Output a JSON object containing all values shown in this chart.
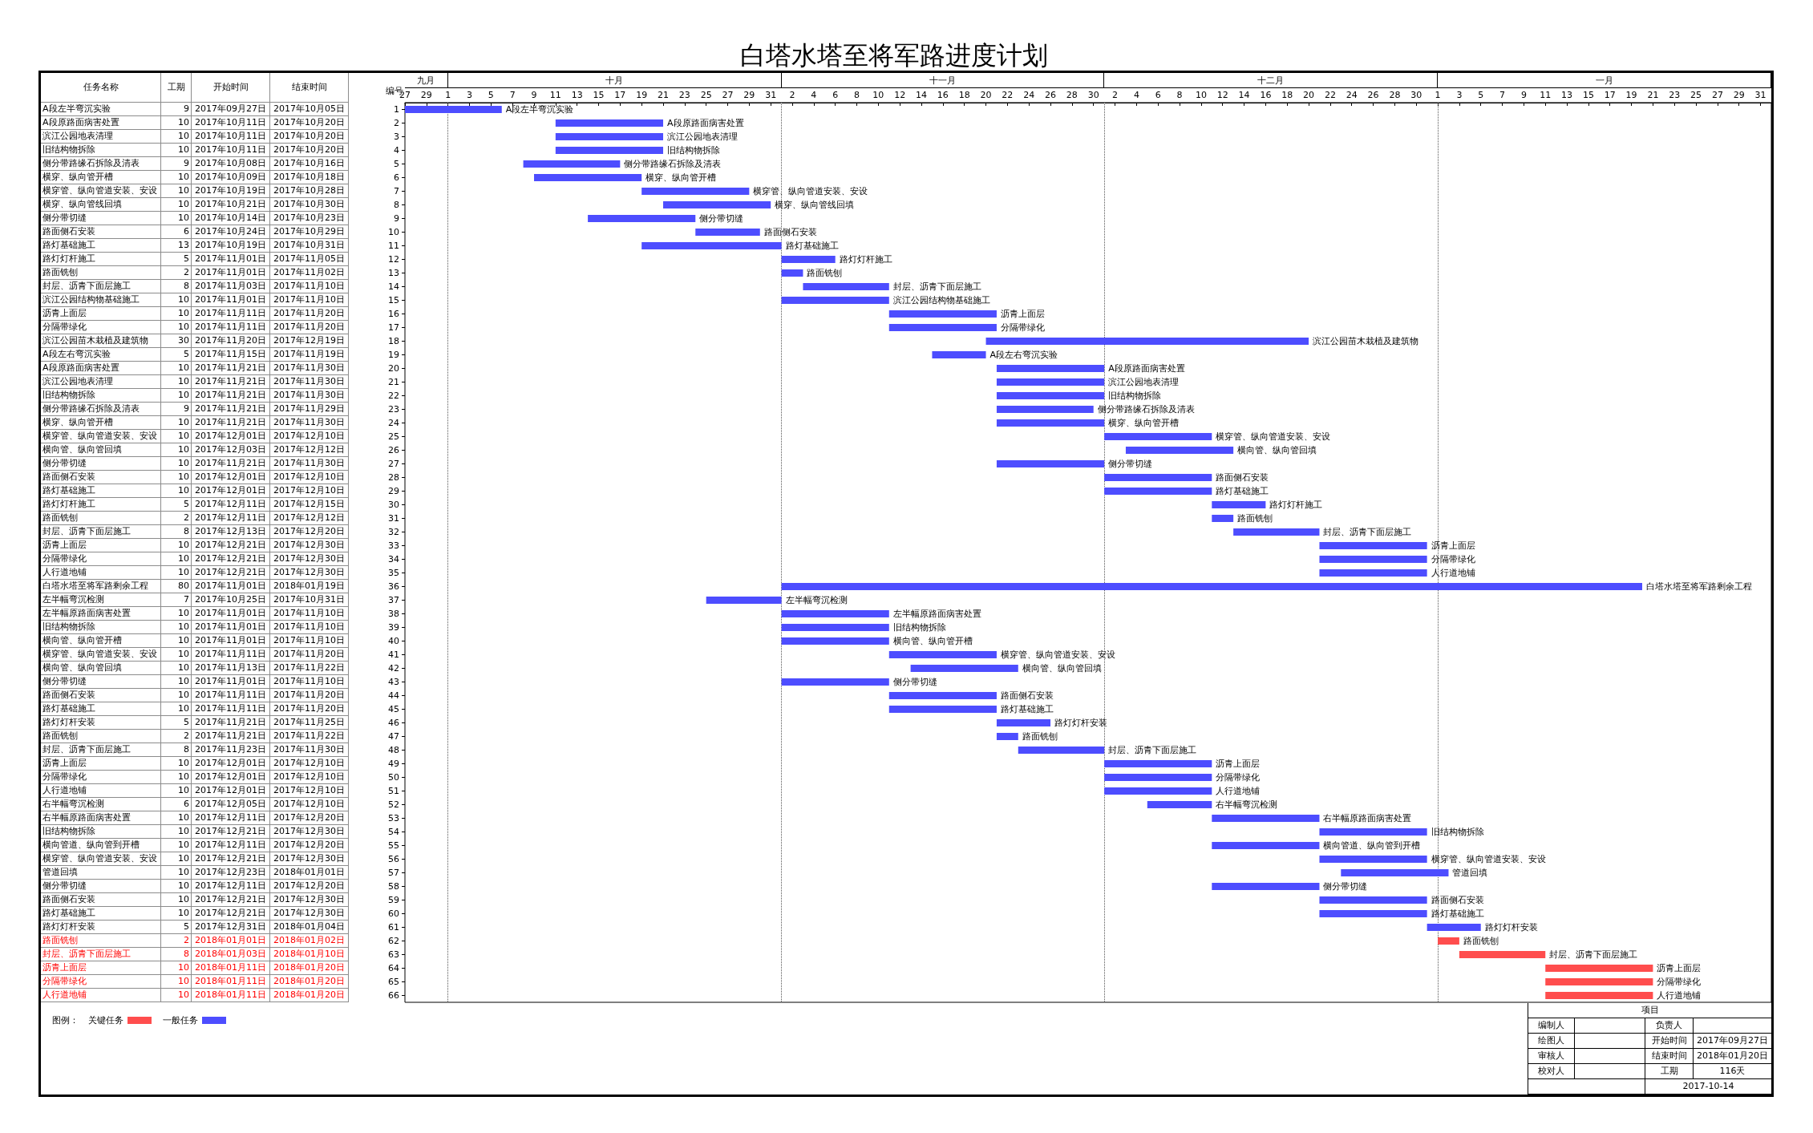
{
  "chart_data": [
    {
      "type": "other",
      "categories": [
        "任务名称",
        "工期",
        "开始时间",
        "结束时间"
      ],
      "annotations": [
        "A段左半弯沉实验",
        "9",
        "2017年09月27日",
        "2017年10月05日",
        "A段原路面病害处置",
        "10",
        "2017年10月11日",
        "2017年10月20日",
        "滨江公园地表清理",
        "10",
        "2017年10月11日",
        "2017年10月20日",
        "旧结构物拆除",
        "10",
        "2017年10月11日",
        "2017年10月20日",
        "侧分带路缘石拆除及清表",
        "9",
        "2017年10月08日",
        "2017年10月16日",
        "横穿、纵向管开槽",
        "10",
        "2017年10月09日",
        "2017年10月18日",
        "横穿管、纵向管道安装、安设",
        "10",
        "2017年10月19日",
        "2017年10月28日",
        "横穿、纵向管线回填",
        "10",
        "2017年10月21日",
        "2017年10月30日",
        "侧分带切缝",
        "10",
        "2017年10月14日",
        "2017年10月23日",
        "路面侧石安装",
        "6",
        "2017年10月24日",
        "2017年10月29日",
        "路灯基础施工",
        "13",
        "2017年10月19日",
        "2017年10月31日",
        "路灯灯杆施工",
        "5",
        "2017年11月01日",
        "2017年11月05日",
        "路面铣刨",
        "2",
        "2017年11月01日",
        "2017年11月02日",
        "封层、沥青下面层施工",
        "8",
        "2017年11月03日",
        "2017年11月10日",
        "滨江公园结构物基础施工",
        "10",
        "2017年11月01日",
        "2017年11月10日",
        "沥青上面层",
        "10",
        "2017年11月11日",
        "2017年11月20日",
        "分隔带绿化",
        "10",
        "2017年11月11日",
        "2017年11月20日",
        "滨江公园苗木栽植及建筑物",
        "30",
        "2017年11月20日",
        "2017年12月19日",
        "A段左右弯沉实验",
        "5",
        "2017年11月15日",
        "2017年11月19日",
        "A段原路面病害处置",
        "10",
        "2017年11月21日",
        "2017年11月30日",
        "滨江公园地表清理",
        "10",
        "2017年11月21日",
        "2017年11月30日",
        "旧结构物拆除",
        "10",
        "2017年11月21日",
        "2017年11月30日",
        "侧分带路缘石拆除及清表",
        "9",
        "2017年11月21日",
        "2017年11月29日",
        "横穿、纵向管开槽",
        "10",
        "2017年11月21日",
        "2017年11月30日",
        "横穿管、纵向管道安装、安设",
        "10",
        "2017年12月01日",
        "2017年12月10日",
        "横向管、纵向管回填",
        "10",
        "2017年12月03日",
        "2017年12月12日",
        "侧分带切缝",
        "10",
        "2017年11月21日",
        "2017年11月30日",
        "路面侧石安装",
        "10",
        "2017年12月01日",
        "2017年12月10日",
        "路灯基础施工",
        "10",
        "2017年12月01日",
        "2017年12月10日",
        "路灯灯杆施工",
        "5",
        "2017年12月11日",
        "2017年12月15日",
        "路面铣刨",
        "2",
        "2017年12月11日",
        "2017年12月12日",
        "封层、沥青下面层施工",
        "8",
        "2017年12月13日",
        "2017年12月20日",
        "沥青上面层",
        "10",
        "2017年12月21日",
        "2017年12月30日",
        "分隔带绿化",
        "10",
        "2017年12月21日",
        "2017年12月30日",
        "人行道地铺",
        "10",
        "2017年12月21日",
        "2017年12月30日",
        "白塔水塔至将军路剩余工程",
        "80",
        "2017年11月01日",
        "2018年01月19日",
        "左半幅弯沉检测",
        "7",
        "2017年10月25日",
        "2017年10月31日",
        "左半幅原路面病害处置",
        "10",
        "2017年11月01日",
        "2017年11月10日",
        "旧结构物拆除",
        "10",
        "2017年11月01日",
        "2017年11月10日",
        "横向管、纵向管开槽",
        "10",
        "2017年11月01日",
        "2017年11月10日",
        "横穿管、纵向管道安装、安设",
        "10",
        "2017年11月11日",
        "2017年11月20日",
        "横向管、纵向管回填",
        "10",
        "2017年11月13日",
        "2017年11月22日",
        "侧分带切缝",
        "10",
        "2017年11月01日",
        "2017年11月10日",
        "路面侧石安装",
        "10",
        "2017年11月11日",
        "2017年11月20日",
        "路灯基础施工",
        "10",
        "2017年11月11日",
        "2017年11月20日",
        "路灯灯杆安装",
        "5",
        "2017年11月21日",
        "2017年11月25日",
        "路面铣刨",
        "2",
        "2017年11月21日",
        "2017年11月22日",
        "封层、沥青下面层施工",
        "8",
        "2017年11月23日",
        "2017年11月30日",
        "沥青上面层",
        "10",
        "2017年12月01日",
        "2017年12月10日",
        "分隔带绿化",
        "10",
        "2017年12月01日",
        "2017年12月10日",
        "人行道地铺",
        "10",
        "2017年12月01日",
        "2017年12月10日",
        "右半幅弯沉检测",
        "6",
        "2017年12月05日",
        "2017年12月10日",
        "右半幅原路面病害处置",
        "10",
        "2017年12月11日",
        "2017年12月20日",
        "旧结构物拆除",
        "10",
        "2017年12月21日",
        "2017年12月30日",
        "横向管道、纵向管到开槽",
        "10",
        "2017年12月11日",
        "2017年12月20日",
        "横穿管、纵向管道安装、安设",
        "10",
        "2017年12月21日",
        "2017年12月30日",
        "管道回填",
        "10",
        "2017年12月23日",
        "2018年01月01日",
        "侧分带切缝",
        "10",
        "2017年12月11日",
        "2017年12月20日",
        "路面侧石安装",
        "10",
        "2017年12月21日",
        "2017年12月30日",
        "路灯基础施工",
        "10",
        "2017年12月21日",
        "2017年12月30日",
        "路灯灯杆安装",
        "5",
        "2017年12月31日",
        "2018年01月04日",
        "路面铣刨",
        "2",
        "2018年01月01日",
        "2018年01月02日",
        "封层、沥青下面层施工",
        "8",
        "2018年01月03日",
        "2018年01月10日",
        "沥青上面层",
        "10",
        "2018年01月11日",
        "2018年01月20日",
        "分隔带绿化",
        "10",
        "2018年01月11日",
        "2018年01月20日",
        "人行道地铺",
        "10",
        "2018年01月11日",
        "2018年01月20日"
      ],
      "colors": [
        "#000000",
        "#000000",
        "#000000",
        "#000000",
        "#000000",
        "#000000",
        "#000000",
        "#000000",
        "#000000",
        "#000000",
        "#000000",
        "#000000",
        "#000000",
        "#000000",
        "#000000",
        "#000000",
        "#000000",
        "#000000",
        "#000000",
        "#000000",
        "#000000",
        "#000000",
        "#000000",
        "#000000",
        "#000000",
        "#000000",
        "#000000",
        "#000000",
        "#000000",
        "#000000",
        "#000000",
        "#000000",
        "#000000",
        "#000000",
        "#000000",
        "#000000",
        "#000000",
        "#000000",
        "#000000",
        "#000000",
        "#000000",
        "#000000",
        "#000000",
        "#000000",
        "#000000",
        "#000000",
        "#000000",
        "#000000",
        "#000000",
        "#000000",
        "#000000",
        "#000000",
        "#000000",
        "#000000",
        "#000000",
        "#000000",
        "#000000",
        "#000000",
        "#000000",
        "#000000",
        "#000000",
        "#ff0000",
        "#ff0000",
        "#ff0000",
        "#ff0000",
        "#ff0000"
      ]
    },
    {
      "type": "line",
      "title": "白塔水塔至将军路进度计划",
      "ylabel": "编号",
      "series": [
        {
          "name": "关键任务",
          "color": "#ff4d4d",
          "x": [
            "2018-01-01",
            "2018-01-03"
          ],
          "values": [
            62,
            62
          ]
        },
        {
          "color": "#ff4d4d",
          "x": [
            "2018-01-03",
            "2018-01-11"
          ],
          "values": [
            63,
            63
          ]
        },
        {
          "color": "#ff4d4d",
          "x": [
            "2018-01-11",
            "2018-01-21"
          ],
          "values": [
            64,
            64
          ]
        },
        {
          "color": "#ff4d4d",
          "x": [
            "2018-01-11",
            "2018-01-21"
          ],
          "values": [
            65,
            65
          ]
        },
        {
          "color": "#ff4d4d",
          "x": [
            "2018-01-11",
            "2018-01-21"
          ],
          "values": [
            66,
            66
          ]
        },
        {
          "name": "一般任务",
          "color": "#4d4dff",
          "x": [
            "2017-09-27",
            "2017-10-06"
          ],
          "values": [
            1,
            1
          ]
        },
        {
          "color": "#4d4dff",
          "x": [
            "2017-10-11",
            "2017-10-21"
          ],
          "values": [
            2,
            2
          ]
        },
        {
          "color": "#4d4dff",
          "x": [
            "2017-10-11",
            "2017-10-21"
          ],
          "values": [
            3,
            3
          ]
        },
        {
          "color": "#4d4dff",
          "x": [
            "2017-10-11",
            "2017-10-21"
          ],
          "values": [
            4,
            4
          ]
        },
        {
          "color": "#4d4dff",
          "x": [
            "2017-10-08",
            "2017-10-17"
          ],
          "values": [
            5,
            5
          ]
        },
        {
          "color": "#4d4dff",
          "x": [
            "2017-10-09",
            "2017-10-19"
          ],
          "values": [
            6,
            6
          ]
        },
        {
          "color": "#4d4dff",
          "x": [
            "2017-10-19",
            "2017-10-29"
          ],
          "values": [
            7,
            7
          ]
        },
        {
          "color": "#4d4dff",
          "x": [
            "2017-10-21",
            "2017-10-31"
          ],
          "values": [
            8,
            8
          ]
        },
        {
          "color": "#4d4dff",
          "x": [
            "2017-10-14",
            "2017-10-24"
          ],
          "values": [
            9,
            9
          ]
        },
        {
          "color": "#4d4dff",
          "x": [
            "2017-10-24",
            "2017-10-30"
          ],
          "values": [
            10,
            10
          ]
        },
        {
          "color": "#4d4dff",
          "x": [
            "2017-10-19",
            "2017-11-01"
          ],
          "values": [
            11,
            11
          ]
        },
        {
          "color": "#4d4dff",
          "x": [
            "2017-11-01",
            "2017-11-06"
          ],
          "values": [
            12,
            12
          ]
        },
        {
          "color": "#4d4dff",
          "x": [
            "2017-11-01",
            "2017-11-03"
          ],
          "values": [
            13,
            13
          ]
        },
        {
          "color": "#4d4dff",
          "x": [
            "2017-11-03",
            "2017-11-11"
          ],
          "values": [
            14,
            14
          ]
        },
        {
          "color": "#4d4dff",
          "x": [
            "2017-11-01",
            "2017-11-11"
          ],
          "values": [
            15,
            15
          ]
        },
        {
          "color": "#4d4dff",
          "x": [
            "2017-11-11",
            "2017-11-21"
          ],
          "values": [
            16,
            16
          ]
        },
        {
          "color": "#4d4dff",
          "x": [
            "2017-11-11",
            "2017-11-21"
          ],
          "values": [
            17,
            17
          ]
        },
        {
          "color": "#4d4dff",
          "x": [
            "2017-11-20",
            "2017-12-20"
          ],
          "values": [
            18,
            18
          ]
        },
        {
          "color": "#4d4dff",
          "x": [
            "2017-11-15",
            "2017-11-20"
          ],
          "values": [
            19,
            19
          ]
        },
        {
          "color": "#4d4dff",
          "x": [
            "2017-11-21",
            "2017-12-01"
          ],
          "values": [
            20,
            20
          ]
        },
        {
          "color": "#4d4dff",
          "x": [
            "2017-11-21",
            "2017-12-01"
          ],
          "values": [
            21,
            21
          ]
        },
        {
          "color": "#4d4dff",
          "x": [
            "2017-11-21",
            "2017-12-01"
          ],
          "values": [
            22,
            22
          ]
        },
        {
          "color": "#4d4dff",
          "x": [
            "2017-11-21",
            "2017-11-30"
          ],
          "values": [
            23,
            23
          ]
        },
        {
          "color": "#4d4dff",
          "x": [
            "2017-11-21",
            "2017-12-01"
          ],
          "values": [
            24,
            24
          ]
        },
        {
          "color": "#4d4dff",
          "x": [
            "2017-12-01",
            "2017-12-11"
          ],
          "values": [
            25,
            25
          ]
        },
        {
          "color": "#4d4dff",
          "x": [
            "2017-12-03",
            "2017-12-13"
          ],
          "values": [
            26,
            26
          ]
        },
        {
          "color": "#4d4dff",
          "x": [
            "2017-11-21",
            "2017-12-01"
          ],
          "values": [
            27,
            27
          ]
        },
        {
          "color": "#4d4dff",
          "x": [
            "2017-12-01",
            "2017-12-11"
          ],
          "values": [
            28,
            28
          ]
        },
        {
          "color": "#4d4dff",
          "x": [
            "2017-12-01",
            "2017-12-11"
          ],
          "values": [
            29,
            29
          ]
        },
        {
          "color": "#4d4dff",
          "x": [
            "2017-12-11",
            "2017-12-16"
          ],
          "values": [
            30,
            30
          ]
        },
        {
          "color": "#4d4dff",
          "x": [
            "2017-12-11",
            "2017-12-13"
          ],
          "values": [
            31,
            31
          ]
        },
        {
          "color": "#4d4dff",
          "x": [
            "2017-12-13",
            "2017-12-21"
          ],
          "values": [
            32,
            32
          ]
        },
        {
          "color": "#4d4dff",
          "x": [
            "2017-12-21",
            "2017-12-31"
          ],
          "values": [
            33,
            33
          ]
        },
        {
          "color": "#4d4dff",
          "x": [
            "2017-12-21",
            "2017-12-31"
          ],
          "values": [
            34,
            34
          ]
        },
        {
          "color": "#4d4dff",
          "x": [
            "2017-12-21",
            "2017-12-31"
          ],
          "values": [
            35,
            35
          ]
        },
        {
          "color": "#4d4dff",
          "x": [
            "2017-11-01",
            "2018-01-20"
          ],
          "values": [
            36,
            36
          ]
        },
        {
          "color": "#4d4dff",
          "x": [
            "2017-10-25",
            "2017-11-01"
          ],
          "values": [
            37,
            37
          ]
        },
        {
          "color": "#4d4dff",
          "x": [
            "2017-11-01",
            "2017-11-11"
          ],
          "values": [
            38,
            38
          ]
        },
        {
          "color": "#4d4dff",
          "x": [
            "2017-11-01",
            "2017-11-11"
          ],
          "values": [
            39,
            39
          ]
        },
        {
          "color": "#4d4dff",
          "x": [
            "2017-11-01",
            "2017-11-11"
          ],
          "values": [
            40,
            40
          ]
        },
        {
          "color": "#4d4dff",
          "x": [
            "2017-11-11",
            "2017-11-21"
          ],
          "values": [
            41,
            41
          ]
        },
        {
          "color": "#4d4dff",
          "x": [
            "2017-11-13",
            "2017-11-23"
          ],
          "values": [
            42,
            42
          ]
        },
        {
          "color": "#4d4dff",
          "x": [
            "2017-11-01",
            "2017-11-11"
          ],
          "values": [
            43,
            43
          ]
        },
        {
          "color": "#4d4dff",
          "x": [
            "2017-11-11",
            "2017-11-21"
          ],
          "values": [
            44,
            44
          ]
        },
        {
          "color": "#4d4dff",
          "x": [
            "2017-11-11",
            "2017-11-21"
          ],
          "values": [
            45,
            45
          ]
        },
        {
          "color": "#4d4dff",
          "x": [
            "2017-11-21",
            "2017-11-26"
          ],
          "values": [
            46,
            46
          ]
        },
        {
          "color": "#4d4dff",
          "x": [
            "2017-11-21",
            "2017-11-23"
          ],
          "values": [
            47,
            47
          ]
        },
        {
          "color": "#4d4dff",
          "x": [
            "2017-11-23",
            "2017-12-01"
          ],
          "values": [
            48,
            48
          ]
        },
        {
          "color": "#4d4dff",
          "x": [
            "2017-12-01",
            "2017-12-11"
          ],
          "values": [
            49,
            49
          ]
        },
        {
          "color": "#4d4dff",
          "x": [
            "2017-12-01",
            "2017-12-11"
          ],
          "values": [
            50,
            50
          ]
        },
        {
          "color": "#4d4dff",
          "x": [
            "2017-12-01",
            "2017-12-11"
          ],
          "values": [
            51,
            51
          ]
        },
        {
          "color": "#4d4dff",
          "x": [
            "2017-12-05",
            "2017-12-11"
          ],
          "values": [
            52,
            52
          ]
        },
        {
          "color": "#4d4dff",
          "x": [
            "2017-12-11",
            "2017-12-21"
          ],
          "values": [
            53,
            53
          ]
        },
        {
          "color": "#4d4dff",
          "x": [
            "2017-12-21",
            "2017-12-31"
          ],
          "values": [
            54,
            54
          ]
        },
        {
          "color": "#4d4dff",
          "x": [
            "2017-12-11",
            "2017-12-21"
          ],
          "values": [
            55,
            55
          ]
        },
        {
          "color": "#4d4dff",
          "x": [
            "2017-12-21",
            "2017-12-31"
          ],
          "values": [
            56,
            56
          ]
        },
        {
          "color": "#4d4dff",
          "x": [
            "2017-12-23",
            "2018-01-02"
          ],
          "values": [
            57,
            57
          ]
        },
        {
          "color": "#4d4dff",
          "x": [
            "2017-12-11",
            "2017-12-21"
          ],
          "values": [
            58,
            58
          ]
        },
        {
          "color": "#4d4dff",
          "x": [
            "2017-12-21",
            "2017-12-31"
          ],
          "values": [
            59,
            59
          ]
        },
        {
          "color": "#4d4dff",
          "x": [
            "2017-12-21",
            "2017-12-31"
          ],
          "values": [
            60,
            60
          ]
        },
        {
          "color": "#4d4dff",
          "x": [
            "2017-12-31",
            "2018-01-05"
          ],
          "values": [
            61,
            61
          ]
        }
      ],
      "xlim": [
        "2017-09-27",
        "2018-02-01"
      ],
      "xticks": [
        {
          "value": "2017-09-27",
          "label": "27"
        },
        {
          "value": "2017-09-29",
          "label": "29"
        },
        {
          "value": "2017-10-01",
          "label": "1"
        },
        {
          "value": "2017-10-03",
          "label": "3"
        },
        {
          "value": "2017-10-05",
          "label": "5"
        },
        {
          "value": "2017-10-07",
          "label": "7"
        },
        {
          "value": "2017-10-09",
          "label": "9"
        },
        {
          "value": "2017-10-11",
          "label": "11"
        },
        {
          "value": "2017-10-13",
          "label": "13"
        },
        {
          "value": "2017-10-15",
          "label": "15"
        },
        {
          "value": "2017-10-17",
          "label": "17"
        },
        {
          "value": "2017-10-19",
          "label": "19"
        },
        {
          "value": "2017-10-21",
          "label": "21"
        },
        {
          "value": "2017-10-23",
          "label": "23"
        },
        {
          "value": "2017-10-25",
          "label": "25"
        },
        {
          "value": "2017-10-27",
          "label": "27"
        },
        {
          "value": "2017-10-29",
          "label": "29"
        },
        {
          "value": "2017-10-31",
          "label": "31"
        },
        {
          "value": "2017-11-02",
          "label": "2"
        },
        {
          "value": "2017-11-04",
          "label": "4"
        },
        {
          "value": "2017-11-06",
          "label": "6"
        },
        {
          "value": "2017-11-08",
          "label": "8"
        },
        {
          "value": "2017-11-10",
          "label": "10"
        },
        {
          "value": "2017-11-12",
          "label": "12"
        },
        {
          "value": "2017-11-14",
          "label": "14"
        },
        {
          "value": "2017-11-16",
          "label": "16"
        },
        {
          "value": "2017-11-18",
          "label": "18"
        },
        {
          "value": "2017-11-20",
          "label": "20"
        },
        {
          "value": "2017-11-22",
          "label": "22"
        },
        {
          "value": "2017-11-24",
          "label": "24"
        },
        {
          "value": "2017-11-26",
          "label": "26"
        },
        {
          "value": "2017-11-28",
          "label": "28"
        },
        {
          "value": "2017-11-30",
          "label": "30"
        },
        {
          "value": "2017-12-02",
          "label": "2"
        },
        {
          "value": "2017-12-04",
          "label": "4"
        },
        {
          "value": "2017-12-06",
          "label": "6"
        },
        {
          "value": "2017-12-08",
          "label": "8"
        },
        {
          "value": "2017-12-10",
          "label": "10"
        },
        {
          "value": "2017-12-12",
          "label": "12"
        },
        {
          "value": "2017-12-14",
          "label": "14"
        },
        {
          "value": "2017-12-16",
          "label": "16"
        },
        {
          "value": "2017-12-18",
          "label": "18"
        },
        {
          "value": "2017-12-20",
          "label": "20"
        },
        {
          "value": "2017-12-22",
          "label": "22"
        },
        {
          "value": "2017-12-24",
          "label": "24"
        },
        {
          "value": "2017-12-26",
          "label": "26"
        },
        {
          "value": "2017-12-28",
          "label": "28"
        },
        {
          "value": "2017-12-30",
          "label": "30"
        },
        {
          "value": "2018-01-01",
          "label": "1"
        },
        {
          "value": "2018-01-03",
          "label": "3"
        },
        {
          "value": "2018-01-05",
          "label": "5"
        },
        {
          "value": "2018-01-07",
          "label": "7"
        },
        {
          "value": "2018-01-09",
          "label": "9"
        },
        {
          "value": "2018-01-11",
          "label": "11"
        },
        {
          "value": "2018-01-13",
          "label": "13"
        },
        {
          "value": "2018-01-15",
          "label": "15"
        },
        {
          "value": "2018-01-17",
          "label": "17"
        },
        {
          "value": "2018-01-19",
          "label": "19"
        },
        {
          "value": "2018-01-21",
          "label": "21"
        },
        {
          "value": "2018-01-23",
          "label": "23"
        },
        {
          "value": "2018-01-25",
          "label": "25"
        },
        {
          "value": "2018-01-27",
          "label": "27"
        },
        {
          "value": "2018-01-29",
          "label": "29"
        },
        {
          "value": "2018-01-31",
          "label": "31"
        }
      ],
      "ylim": [
        66.5,
        0.5
      ],
      "yticks": [
        1,
        2,
        3,
        4,
        5,
        6,
        7,
        8,
        9,
        10,
        11,
        12,
        13,
        14,
        15,
        16,
        17,
        18,
        19,
        20,
        21,
        22,
        23,
        24,
        25,
        26,
        27,
        28,
        29,
        30,
        31,
        32,
        33,
        34,
        35,
        36,
        37,
        38,
        39,
        40,
        41,
        42,
        43,
        44,
        45,
        46,
        47,
        48,
        49,
        50,
        51,
        52,
        53,
        54,
        55,
        56,
        57,
        58,
        59,
        60,
        61,
        62,
        63,
        64,
        65,
        66
      ],
      "ref_lines": [
        {
          "axis": "x",
          "value": "2017-10-01",
          "line_style": "dotted",
          "color": "#555555"
        },
        {
          "axis": "x",
          "value": "2017-11-01",
          "line_style": "dotted",
          "color": "#555555"
        },
        {
          "axis": "x",
          "value": "2017-12-01",
          "line_style": "dotted",
          "color": "#555555"
        },
        {
          "axis": "x",
          "value": "2018-01-01",
          "line_style": "dotted",
          "color": "#555555"
        }
      ],
      "annotations": [
        "九月",
        "十月",
        "十一月",
        "十二月",
        "一月",
        {
          "text": "A段左半弯沉实验",
          "x": "2017-10-06",
          "y": 1
        },
        {
          "text": "A段原路面病害处置",
          "x": "2017-10-21",
          "y": 2
        },
        {
          "text": "滨江公园地表清理",
          "x": "2017-10-21",
          "y": 3
        },
        {
          "text": "旧结构物拆除",
          "x": "2017-10-21",
          "y": 4
        },
        {
          "text": "侧分带路缘石拆除及清表",
          "x": "2017-10-17",
          "y": 5
        },
        {
          "text": "横穿、纵向管开槽",
          "x": "2017-10-19",
          "y": 6
        },
        {
          "text": "横穿管、纵向管道安装、安设",
          "x": "2017-10-29",
          "y": 7
        },
        {
          "text": "横穿、纵向管线回填",
          "x": "2017-10-31",
          "y": 8
        },
        {
          "text": "侧分带切缝",
          "x": "2017-10-24",
          "y": 9
        },
        {
          "text": "路面侧石安装",
          "x": "2017-10-30",
          "y": 10
        },
        {
          "text": "路灯基础施工",
          "x": "2017-11-01",
          "y": 11
        },
        {
          "text": "路灯灯杆施工",
          "x": "2017-11-06",
          "y": 12
        },
        {
          "text": "路面铣刨",
          "x": "2017-11-03",
          "y": 13
        },
        {
          "text": "封层、沥青下面层施工",
          "x": "2017-11-11",
          "y": 14
        },
        {
          "text": "滨江公园结构物基础施工",
          "x": "2017-11-11",
          "y": 15
        },
        {
          "text": "沥青上面层",
          "x": "2017-11-21",
          "y": 16
        },
        {
          "text": "分隔带绿化",
          "x": "2017-11-21",
          "y": 17
        },
        {
          "text": "滨江公园苗木栽植及建筑物",
          "x": "2017-12-20",
          "y": 18
        },
        {
          "text": "A段左右弯沉实验",
          "x": "2017-11-20",
          "y": 19
        },
        {
          "text": "A段原路面病害处置",
          "x": "2017-12-01",
          "y": 20
        },
        {
          "text": "滨江公园地表清理",
          "x": "2017-12-01",
          "y": 21
        },
        {
          "text": "旧结构物拆除",
          "x": "2017-12-01",
          "y": 22
        },
        {
          "text": "侧分带路缘石拆除及清表",
          "x": "2017-11-30",
          "y": 23
        },
        {
          "text": "横穿、纵向管开槽",
          "x": "2017-12-01",
          "y": 24
        },
        {
          "text": "横穿管、纵向管道安装、安设",
          "x": "2017-12-11",
          "y": 25
        },
        {
          "text": "横向管、纵向管回填",
          "x": "2017-12-13",
          "y": 26
        },
        {
          "text": "侧分带切缝",
          "x": "2017-12-01",
          "y": 27
        },
        {
          "text": "路面侧石安装",
          "x": "2017-12-11",
          "y": 28
        },
        {
          "text": "路灯基础施工",
          "x": "2017-12-11",
          "y": 29
        },
        {
          "text": "路灯灯杆施工",
          "x": "2017-12-16",
          "y": 30
        },
        {
          "text": "路面铣刨",
          "x": "2017-12-13",
          "y": 31
        },
        {
          "text": "封层、沥青下面层施工",
          "x": "2017-12-21",
          "y": 32
        },
        {
          "text": "沥青上面层",
          "x": "2017-12-31",
          "y": 33
        },
        {
          "text": "分隔带绿化",
          "x": "2017-12-31",
          "y": 34
        },
        {
          "text": "人行道地铺",
          "x": "2017-12-31",
          "y": 35
        },
        {
          "text": "白塔水塔至将军路剩余工程",
          "x": "2018-01-20",
          "y": 36
        },
        {
          "text": "左半幅弯沉检测",
          "x": "2017-11-01",
          "y": 37
        },
        {
          "text": "左半幅原路面病害处置",
          "x": "2017-11-11",
          "y": 38
        },
        {
          "text": "旧结构物拆除",
          "x": "2017-11-11",
          "y": 39
        },
        {
          "text": "横向管、纵向管开槽",
          "x": "2017-11-11",
          "y": 40
        },
        {
          "text": "横穿管、纵向管道安装、安设",
          "x": "2017-11-21",
          "y": 41
        },
        {
          "text": "横向管、纵向管回填",
          "x": "2017-11-23",
          "y": 42
        },
        {
          "text": "侧分带切缝",
          "x": "2017-11-11",
          "y": 43
        },
        {
          "text": "路面侧石安装",
          "x": "2017-11-21",
          "y": 44
        },
        {
          "text": "路灯基础施工",
          "x": "2017-11-21",
          "y": 45
        },
        {
          "text": "路灯灯杆安装",
          "x": "2017-11-26",
          "y": 46
        },
        {
          "text": "路面铣刨",
          "x": "2017-11-23",
          "y": 47
        },
        {
          "text": "封层、沥青下面层施工",
          "x": "2017-12-01",
          "y": 48
        },
        {
          "text": "沥青上面层",
          "x": "2017-12-11",
          "y": 49
        },
        {
          "text": "分隔带绿化",
          "x": "2017-12-11",
          "y": 50
        },
        {
          "text": "人行道地铺",
          "x": "2017-12-11",
          "y": 51
        },
        {
          "text": "右半幅弯沉检测",
          "x": "2017-12-11",
          "y": 52
        },
        {
          "text": "右半幅原路面病害处置",
          "x": "2017-12-21",
          "y": 53
        },
        {
          "text": "旧结构物拆除",
          "x": "2017-12-31",
          "y": 54
        },
        {
          "text": "横向管道、纵向管到开槽",
          "x": "2017-12-21",
          "y": 55
        },
        {
          "text": "横穿管、纵向管道安装、安设",
          "x": "2017-12-31",
          "y": 56
        },
        {
          "text": "管道回填",
          "x": "2018-01-02",
          "y": 57
        },
        {
          "text": "侧分带切缝",
          "x": "2017-12-21",
          "y": 58
        },
        {
          "text": "路面侧石安装",
          "x": "2017-12-31",
          "y": 59
        },
        {
          "text": "路灯基础施工",
          "x": "2017-12-31",
          "y": 60
        },
        {
          "text": "路灯灯杆安装",
          "x": "2018-01-05",
          "y": 61
        },
        {
          "text": "路面铣刨",
          "x": "2018-01-03",
          "y": 62
        },
        {
          "text": "封层、沥青下面层施工",
          "x": "2018-01-11",
          "y": 63
        },
        {
          "text": "沥青上面层",
          "x": "2018-01-21",
          "y": 64
        },
        {
          "text": "分隔带绿化",
          "x": "2018-01-21",
          "y": 65
        },
        {
          "text": "人行道地铺",
          "x": "2018-01-21",
          "y": 66
        }
      ],
      "legend": "bottom left",
      "legend_title": "图例："
    },
    {
      "type": "other",
      "annotations": [
        "项目",
        "编制人",
        "负责人",
        "绘图人",
        "开始时间",
        "2017年09月27日",
        "审核人",
        "结束时间",
        "2018年01月20日",
        "校对人",
        "工期",
        "116天",
        "2017-10-14"
      ]
    }
  ]
}
